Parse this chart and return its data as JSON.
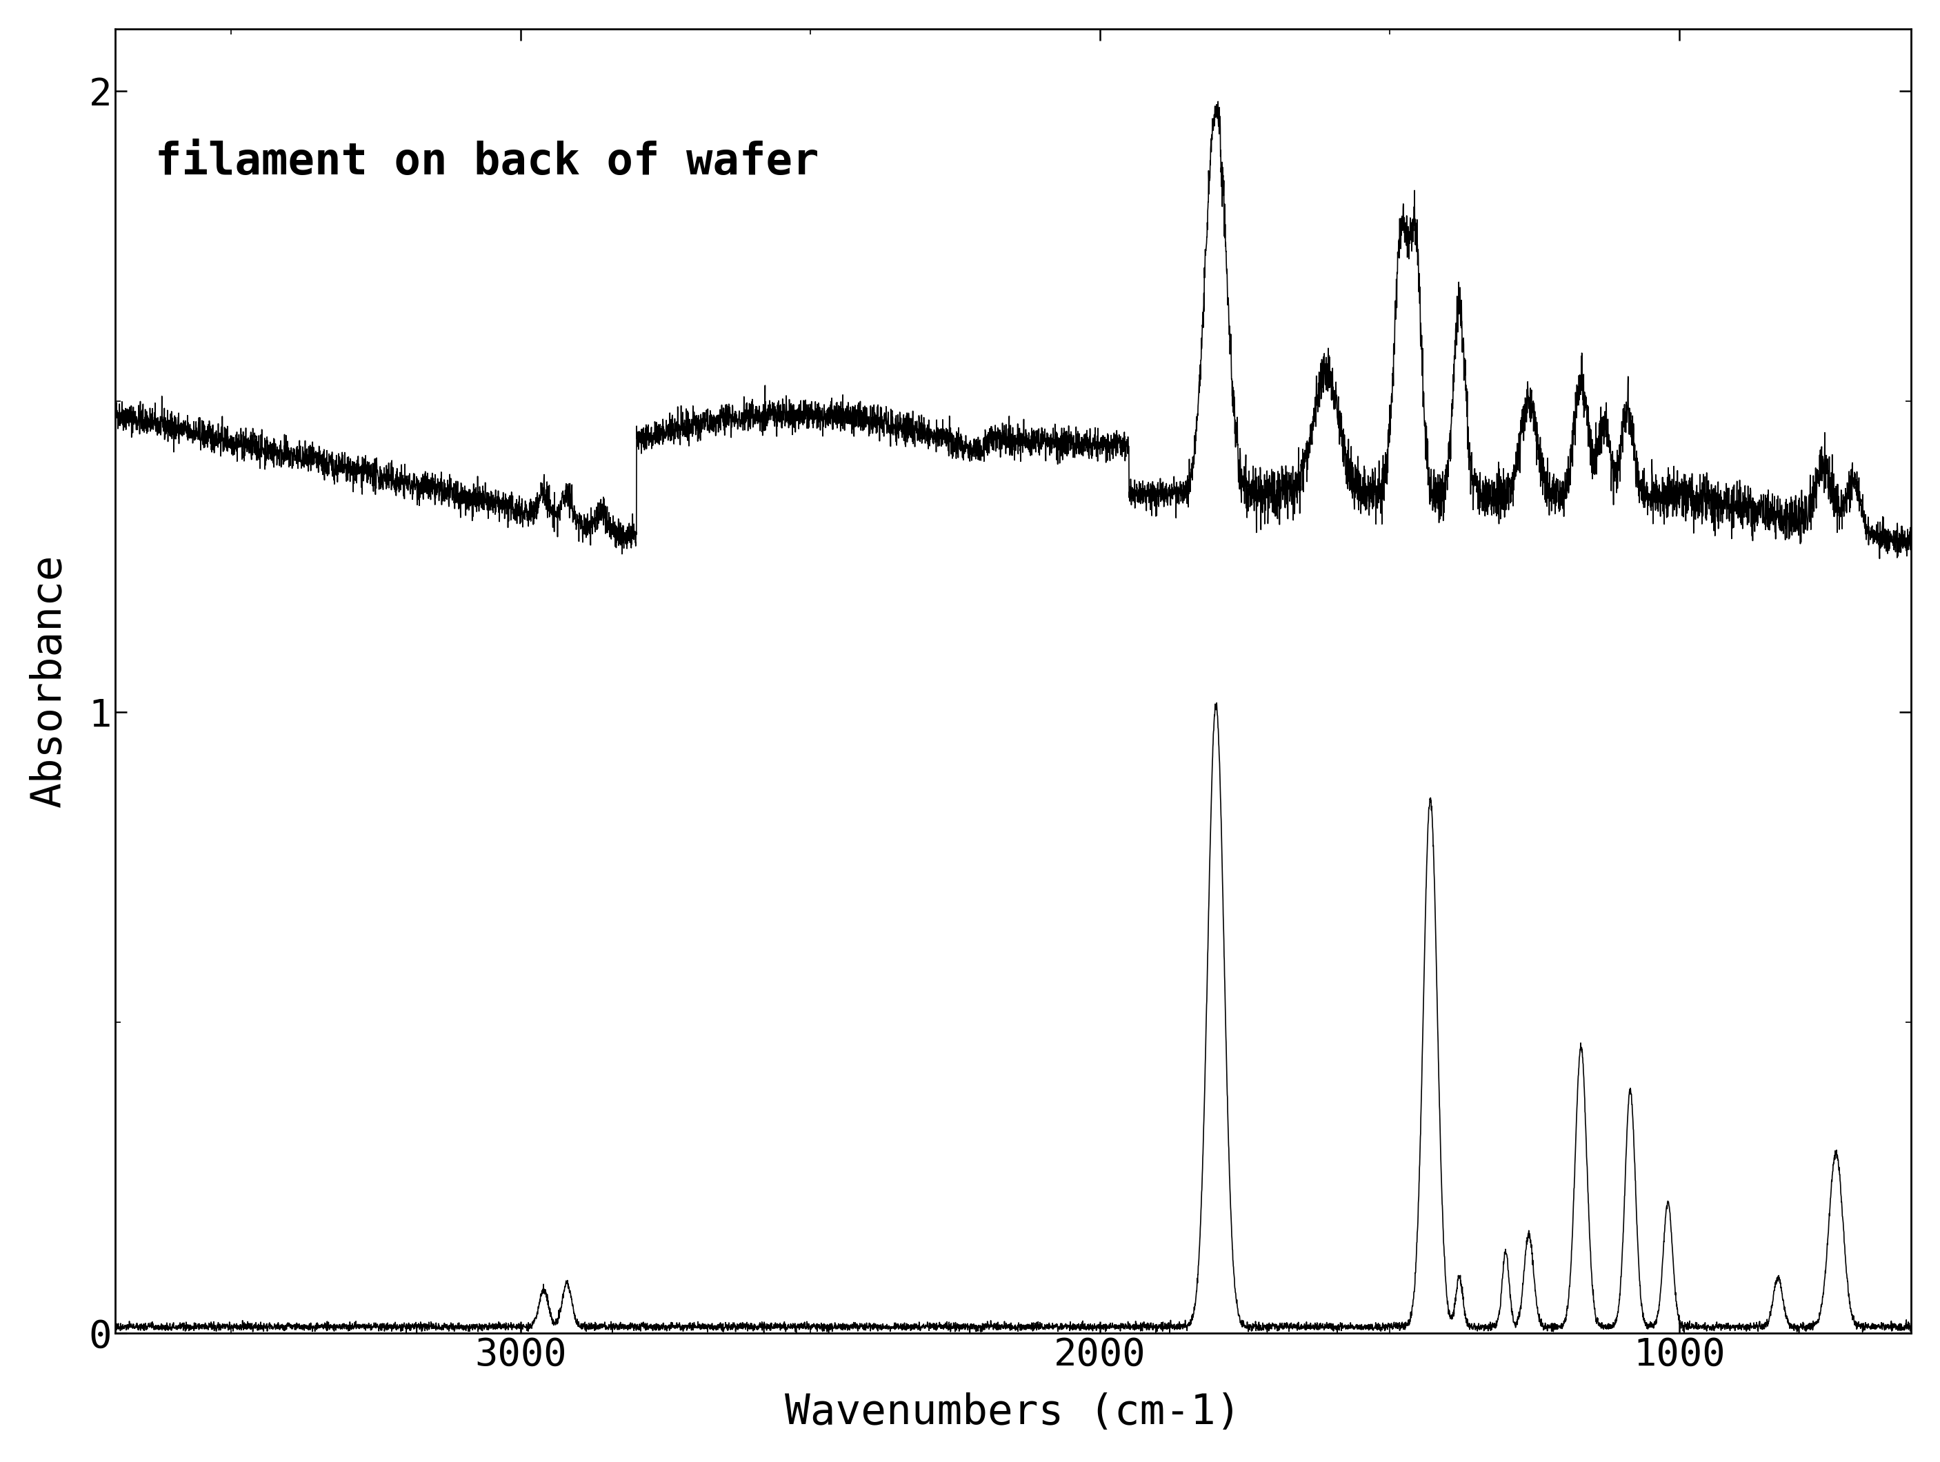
{
  "title": "",
  "xlabel": "Wavenumbers (cm-1)",
  "ylabel": "Absorbance",
  "annotation": "filament on back of wafer",
  "xlim": [
    3700,
    600
  ],
  "ylim": [
    0,
    2.1
  ],
  "yticks": [
    0,
    1,
    2
  ],
  "xticks": [
    3000,
    2000,
    1000
  ],
  "background_color": "#ffffff",
  "line_color": "#000000",
  "annotation_fontsize": 46,
  "axis_label_fontsize": 44,
  "tick_fontsize": 40
}
